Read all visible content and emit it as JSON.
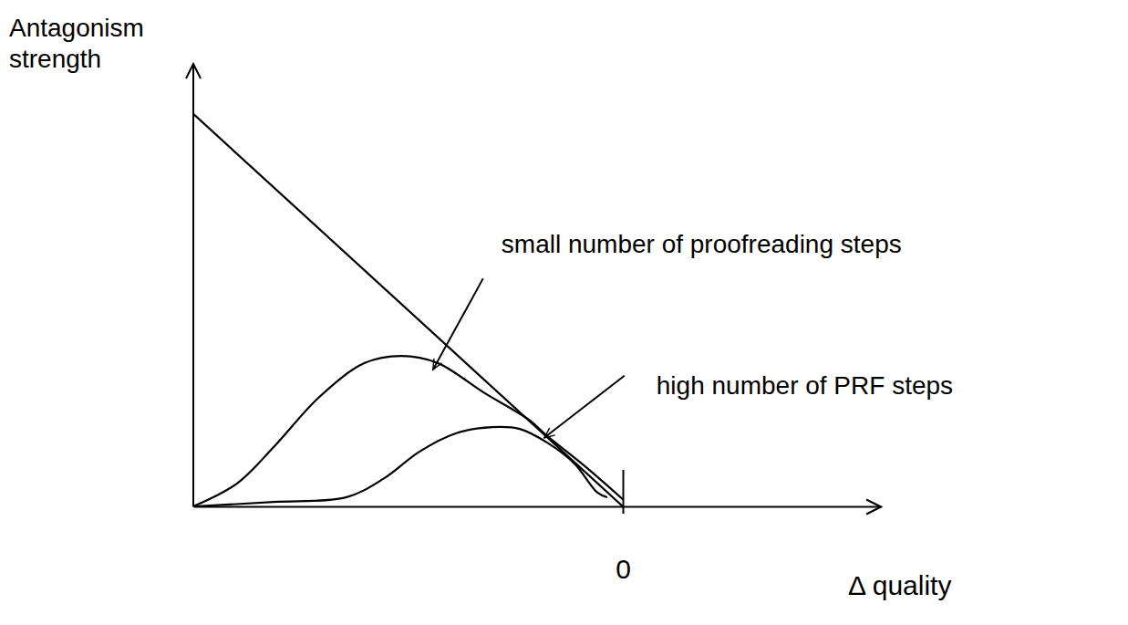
{
  "chart_data": {
    "type": "line",
    "x_label": "Δ quality",
    "y_label": "Antagonism strength",
    "xlim": [
      -1,
      0.6
    ],
    "ylim": [
      0,
      1
    ],
    "xticks": [
      0
    ],
    "yticks": [],
    "tick_labels": "x",
    "grid": false,
    "color": "#000000",
    "series": [
      {
        "x": [
          -1,
          0
        ],
        "values": [
          0.887,
          0.0
        ]
      },
      {
        "x": [
          -1,
          -0.898,
          -0.813,
          -0.707,
          -0.601,
          -0.516,
          -0.431,
          -0.325,
          -0.219,
          -0.176,
          -0.091,
          0
        ],
        "values": [
          0,
          0.052,
          0.134,
          0.247,
          0.324,
          0.34,
          0.324,
          0.258,
          0.196,
          0.159,
          0.093,
          0.016
        ]
      },
      {
        "x": [
          -1,
          -0.813,
          -0.643,
          -0.558,
          -0.473,
          -0.389,
          -0.304,
          -0.24,
          -0.176,
          -0.113,
          -0.059,
          -0.038
        ],
        "values": [
          0,
          0.01,
          0.021,
          0.062,
          0.124,
          0.165,
          0.179,
          0.175,
          0.144,
          0.097,
          0.031,
          0.021
        ]
      }
    ],
    "annotations": [
      {
        "text": "small number of proofreading steps",
        "x": -0.442,
        "y": 0.309
      },
      {
        "text": "high number of PRF steps",
        "x": -0.183,
        "y": 0.155
      }
    ]
  }
}
